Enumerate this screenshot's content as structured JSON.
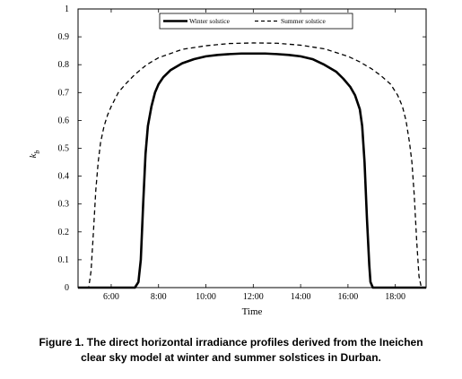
{
  "chart_data": {
    "type": "line",
    "title": "",
    "xlabel": "Time",
    "ylabel": "k_b",
    "ylabel_main": "k",
    "ylabel_sub": "b",
    "xlim": [
      4.6,
      19.3
    ],
    "ylim": [
      0,
      1
    ],
    "x_ticks": [
      6,
      8,
      10,
      12,
      14,
      16,
      18
    ],
    "x_tick_labels": [
      "6:00",
      "8:00",
      "10:00",
      "12:00",
      "14:00",
      "16:00",
      "18:00"
    ],
    "y_ticks": [
      0,
      0.1,
      0.2,
      0.3,
      0.4,
      0.5,
      0.6,
      0.7,
      0.8,
      0.9,
      1
    ],
    "y_tick_labels": [
      "0",
      "0.1",
      "0.2",
      "0.3",
      "0.4",
      "0.5",
      "0.6",
      "0.7",
      "0.8",
      "0.9",
      "1"
    ],
    "grid": false,
    "legend_position": "top-center",
    "series": [
      {
        "name": "Winter solstice",
        "style": "solid",
        "color": "#000000",
        "x": [
          4.6,
          7.0,
          7.15,
          7.25,
          7.35,
          7.45,
          7.55,
          7.7,
          7.85,
          8.0,
          8.2,
          8.5,
          9.0,
          9.5,
          10.0,
          10.5,
          11.0,
          11.5,
          12.0,
          12.5,
          13.0,
          13.5,
          14.0,
          14.5,
          15.0,
          15.5,
          15.8,
          16.1,
          16.3,
          16.5,
          16.6,
          16.7,
          16.8,
          16.9,
          16.95,
          17.05,
          19.3
        ],
        "y": [
          0,
          0,
          0.02,
          0.1,
          0.3,
          0.48,
          0.58,
          0.65,
          0.7,
          0.73,
          0.755,
          0.78,
          0.805,
          0.82,
          0.83,
          0.835,
          0.838,
          0.84,
          0.84,
          0.84,
          0.838,
          0.835,
          0.83,
          0.82,
          0.8,
          0.775,
          0.75,
          0.72,
          0.69,
          0.64,
          0.58,
          0.45,
          0.25,
          0.08,
          0.02,
          0,
          0
        ]
      },
      {
        "name": "Summer solstice",
        "style": "dashed",
        "color": "#000000",
        "x": [
          4.6,
          5.05,
          5.15,
          5.25,
          5.35,
          5.45,
          5.55,
          5.7,
          5.85,
          6.0,
          6.3,
          6.6,
          7.0,
          7.5,
          8.0,
          9.0,
          10.0,
          11.0,
          12.0,
          13.0,
          14.0,
          15.0,
          16.0,
          16.5,
          17.0,
          17.4,
          17.8,
          18.1,
          18.3,
          18.45,
          18.6,
          18.7,
          18.8,
          18.9,
          19.0,
          19.1,
          19.3
        ],
        "y": [
          0,
          0,
          0.06,
          0.2,
          0.35,
          0.45,
          0.52,
          0.58,
          0.62,
          0.65,
          0.7,
          0.73,
          0.765,
          0.8,
          0.825,
          0.855,
          0.868,
          0.876,
          0.878,
          0.877,
          0.87,
          0.857,
          0.83,
          0.81,
          0.785,
          0.76,
          0.73,
          0.69,
          0.65,
          0.6,
          0.52,
          0.45,
          0.33,
          0.17,
          0.04,
          0,
          0
        ]
      }
    ]
  },
  "caption": {
    "line1": "Figure 1. The direct horizontal irradiance profiles derived from the Ineichen",
    "line2": "clear sky model at winter and summer solstices in Durban."
  }
}
